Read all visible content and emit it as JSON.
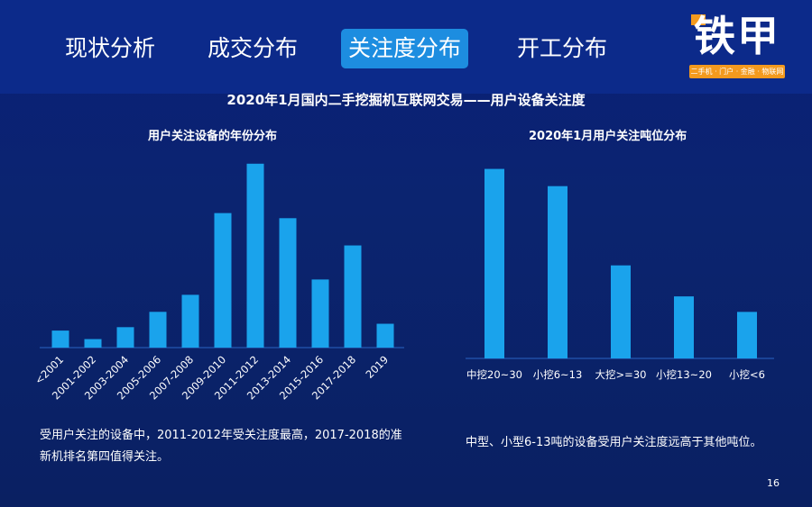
{
  "tabs": [
    {
      "label": "现状分析",
      "active": false
    },
    {
      "label": "成交分布",
      "active": false
    },
    {
      "label": "关注度分布",
      "active": true
    },
    {
      "label": "开工分布",
      "active": false
    }
  ],
  "logo": {
    "main": "铁甲",
    "sub": "二手机 · 门户 · 金融 · 物联网"
  },
  "main_title": "2020年1月国内二手挖掘机互联网交易——用户设备关注度",
  "page_number": "16",
  "colors": {
    "background": "#0a1f78",
    "header": "#0c2a8a",
    "bar": "#1aa3ec",
    "active_tab": "#1d8de0",
    "logo_accent": "#f39a1e"
  },
  "chart_data": [
    {
      "type": "bar",
      "title": "用户关注设备的年份分布",
      "categories": [
        "<2001",
        "2001-2002",
        "2003-2004",
        "2005-2006",
        "2007-2008",
        "2009-2010",
        "2011-2012",
        "2013-2014",
        "2015-2016",
        "2017-2018",
        "2019"
      ],
      "values": [
        10,
        5,
        12,
        21,
        31,
        79,
        108,
        76,
        40,
        60,
        14
      ],
      "xlabel": "",
      "ylabel": "",
      "ylim": [
        0,
        110
      ],
      "grid": false
    },
    {
      "type": "bar",
      "title": "2020年1月用户关注吨位分布",
      "categories": [
        "中挖20~30",
        "小挖6~13",
        "大挖>=30",
        "小挖13~20",
        "小挖<6"
      ],
      "values": [
        110,
        100,
        54,
        36,
        27
      ],
      "xlabel": "",
      "ylabel": "",
      "ylim": [
        0,
        115
      ],
      "grid": false
    }
  ],
  "descriptions": {
    "left": "受用户关注的设备中，2011-2012年受关注度最高，2017-2018的准新机排名第四值得关注。",
    "right": "中型、小型6-13吨的设备受用户关注度远高于其他吨位。"
  }
}
